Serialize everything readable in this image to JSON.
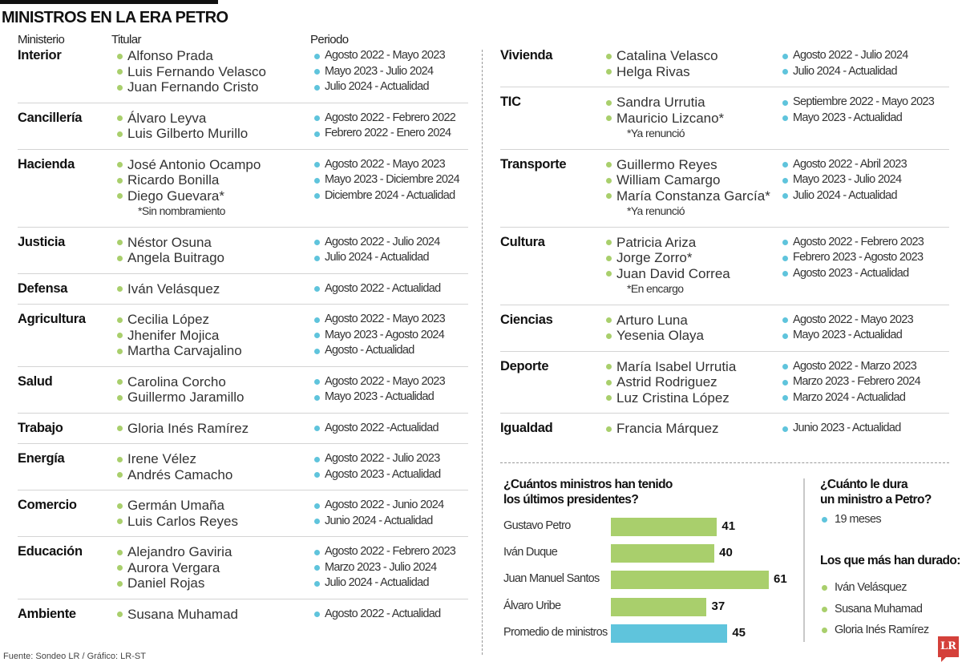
{
  "title": "MINISTROS EN LA ERA PETRO",
  "headers": {
    "ministerio": "Ministerio",
    "titular": "Titular",
    "periodo": "Periodo"
  },
  "left": [
    {
      "ministry": "Interior",
      "holders": [
        "Alfonso Prada",
        "Luis Fernando Velasco",
        "Juan Fernando Cristo"
      ],
      "periods": [
        "Agosto 2022 - Mayo 2023",
        "Mayo 2023 - Julio 2024",
        "Julio 2024 - Actualidad"
      ]
    },
    {
      "ministry": "Cancillería",
      "holders": [
        "Álvaro Leyva",
        "Luis Gilberto Murillo"
      ],
      "periods": [
        "Agosto 2022 - Febrero 2022",
        "Febrero 2022 - Enero 2024"
      ]
    },
    {
      "ministry": "Hacienda",
      "holders": [
        "José Antonio Ocampo",
        "Ricardo Bonilla",
        "Diego Guevara*"
      ],
      "note": "*Sin nombramiento",
      "periods": [
        "Agosto 2022 - Mayo 2023",
        "Mayo 2023 - Diciembre 2024",
        "Diciembre 2024 - Actualidad"
      ]
    },
    {
      "ministry": "Justicia",
      "holders": [
        "Néstor Osuna",
        "Angela Buitrago"
      ],
      "periods": [
        "Agosto 2022 - Julio 2024",
        "Julio 2024 - Actualidad"
      ]
    },
    {
      "ministry": "Defensa",
      "holders": [
        "Iván Velásquez"
      ],
      "periods": [
        "Agosto 2022 - Actualidad"
      ]
    },
    {
      "ministry": "Agricultura",
      "holders": [
        "Cecilia López",
        "Jhenifer Mojica",
        "Martha Carvajalino"
      ],
      "periods": [
        "Agosto 2022 - Mayo 2023",
        "Mayo 2023 - Agosto 2024",
        "Agosto - Actualidad"
      ]
    },
    {
      "ministry": "Salud",
      "holders": [
        "Carolina Corcho",
        "Guillermo Jaramillo"
      ],
      "periods": [
        "Agosto 2022 - Mayo 2023",
        "Mayo 2023 - Actualidad"
      ]
    },
    {
      "ministry": "Trabajo",
      "holders": [
        "Gloria Inés Ramírez"
      ],
      "periods": [
        "Agosto 2022 -Actualidad"
      ]
    },
    {
      "ministry": "Energía",
      "holders": [
        "Irene Vélez",
        "Andrés Camacho"
      ],
      "periods": [
        "Agosto 2022 - Julio 2023",
        "Agosto 2023 - Actualidad"
      ]
    },
    {
      "ministry": "Comercio",
      "holders": [
        "Germán Umaña",
        "Luis Carlos Reyes"
      ],
      "periods": [
        "Agosto 2022 - Junio 2024",
        "Junio 2024 - Actualidad"
      ]
    },
    {
      "ministry": "Educación",
      "holders": [
        "Alejandro Gaviria",
        "Aurora Vergara",
        "Daniel Rojas"
      ],
      "periods": [
        "Agosto 2022 - Febrero 2023",
        "Marzo 2023 - Julio 2024",
        "Julio 2024 - Actualidad"
      ]
    },
    {
      "ministry": "Ambiente",
      "holders": [
        "Susana Muhamad"
      ],
      "periods": [
        "Agosto 2022 - Actualidad"
      ]
    }
  ],
  "right": [
    {
      "ministry": "Vivienda",
      "holders": [
        "Catalina Velasco",
        "Helga Rivas"
      ],
      "periods": [
        "Agosto 2022 - Julio 2024",
        "Julio 2024 - Actualidad"
      ]
    },
    {
      "ministry": "TIC",
      "holders": [
        "Sandra Urrutia",
        "Mauricio Lizcano*"
      ],
      "note": "*Ya renunció",
      "periods": [
        "Septiembre 2022 - Mayo 2023",
        "Mayo 2023 - Actualidad"
      ]
    },
    {
      "ministry": "Transporte",
      "holders": [
        "Guillermo Reyes",
        "William Camargo",
        "María Constanza García*"
      ],
      "note": "*Ya renunció",
      "periods": [
        "Agosto 2022 - Abril 2023",
        "Mayo 2023 - Julio 2024",
        "Julio 2024 - Actualidad"
      ]
    },
    {
      "ministry": "Cultura",
      "holders": [
        "Patricia Ariza",
        "Jorge Zorro*",
        "Juan David Correa"
      ],
      "note": "*En encargo",
      "periods": [
        "Agosto 2022 - Febrero 2023",
        "Febrero 2023 - Agosto 2023",
        "Agosto 2023 - Actualidad"
      ]
    },
    {
      "ministry": "Ciencias",
      "holders": [
        "Arturo Luna",
        "Yesenia Olaya"
      ],
      "periods": [
        "Agosto 2022 - Mayo 2023",
        "Mayo 2023 - Actualidad"
      ]
    },
    {
      "ministry": "Deporte",
      "holders": [
        "María Isabel Urrutia",
        "Astrid Rodriguez",
        "Luz Cristina López"
      ],
      "periods": [
        "Agosto 2022 - Marzo 2023",
        "Marzo 2023 - Febrero 2024",
        "Marzo 2024 - Actualidad"
      ]
    },
    {
      "ministry": "Igualdad",
      "holders": [
        "Francia Márquez"
      ],
      "periods": [
        "Junio 2023 - Actualidad"
      ]
    }
  ],
  "chart_data": {
    "type": "bar",
    "orientation": "horizontal",
    "title": "¿Cuántos ministros han tenido los últimos presidentes?",
    "title_lines": [
      "¿Cuántos ministros han tenido",
      "los últimos presidentes?"
    ],
    "categories": [
      "Gustavo Petro",
      "Iván Duque",
      "Juan Manuel Santos",
      "Álvaro Uribe",
      "Promedio de ministros"
    ],
    "values": [
      41,
      40,
      61,
      37,
      45
    ],
    "colors": [
      "#a9cf6c",
      "#a9cf6c",
      "#a9cf6c",
      "#a9cf6c",
      "#5fc4dc"
    ],
    "xlim": [
      0,
      61
    ],
    "grid": false
  },
  "side": {
    "title_lines": [
      "¿Cuánto le dura",
      "un ministro a Petro?"
    ],
    "duration": "19 meses",
    "longest_title": "Los que más han durado:",
    "longest": [
      "Iván Velásquez",
      "Susana Muhamad",
      "Gloria Inés Ramírez"
    ]
  },
  "footer": "Fuente: Sondeo LR / Gráfico: LR-ST",
  "logo": "LR",
  "colors": {
    "green": "#a9cf6c",
    "blue": "#5fc4dc"
  }
}
